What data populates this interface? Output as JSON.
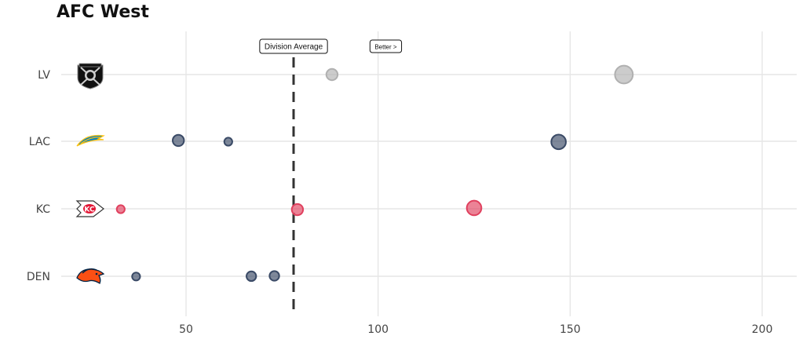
{
  "chart_data": {
    "type": "scatter",
    "title": "AFC West",
    "xlabel": "",
    "ylabel": "",
    "xlim": [
      20,
      210
    ],
    "x_ticks": [
      50,
      100,
      150,
      200
    ],
    "grid": true,
    "teams": [
      {
        "abbr": "LV",
        "logo": "raiders-logo-icon",
        "color": "#b0b0b0"
      },
      {
        "abbr": "LAC",
        "logo": "chargers-logo-icon",
        "color": "#3a4a66"
      },
      {
        "abbr": "KC",
        "logo": "chiefs-logo-icon",
        "color": "#e0405e"
      },
      {
        "abbr": "DEN",
        "logo": "broncos-logo-icon",
        "color": "#3a4a66"
      }
    ],
    "points": [
      {
        "team": "LV",
        "x": 88,
        "size": 2,
        "jitter": 0.0
      },
      {
        "team": "LV",
        "x": 164,
        "size": 4,
        "jitter": 0.0
      },
      {
        "team": "LAC",
        "x": 48,
        "size": 2,
        "jitter": 0.1
      },
      {
        "team": "LAC",
        "x": 61,
        "size": 1,
        "jitter": -0.05
      },
      {
        "team": "LAC",
        "x": 147,
        "size": 3,
        "jitter": -0.08
      },
      {
        "team": "KC",
        "x": 33,
        "size": 1,
        "jitter": -0.05
      },
      {
        "team": "KC",
        "x": 79,
        "size": 2,
        "jitter": -0.1
      },
      {
        "team": "KC",
        "x": 125,
        "size": 3,
        "jitter": 0.1
      },
      {
        "team": "DEN",
        "x": 37,
        "size": 1,
        "jitter": -0.03
      },
      {
        "team": "DEN",
        "x": 67,
        "size": 1.5,
        "jitter": 0.01
      },
      {
        "team": "DEN",
        "x": 73,
        "size": 1.5,
        "jitter": 0.05
      }
    ],
    "division_average": 78,
    "annotations": {
      "division_average_label": "Division Average",
      "direction_label": "Better >",
      "direction_label_x": 102
    },
    "point_opacity": 0.65
  }
}
